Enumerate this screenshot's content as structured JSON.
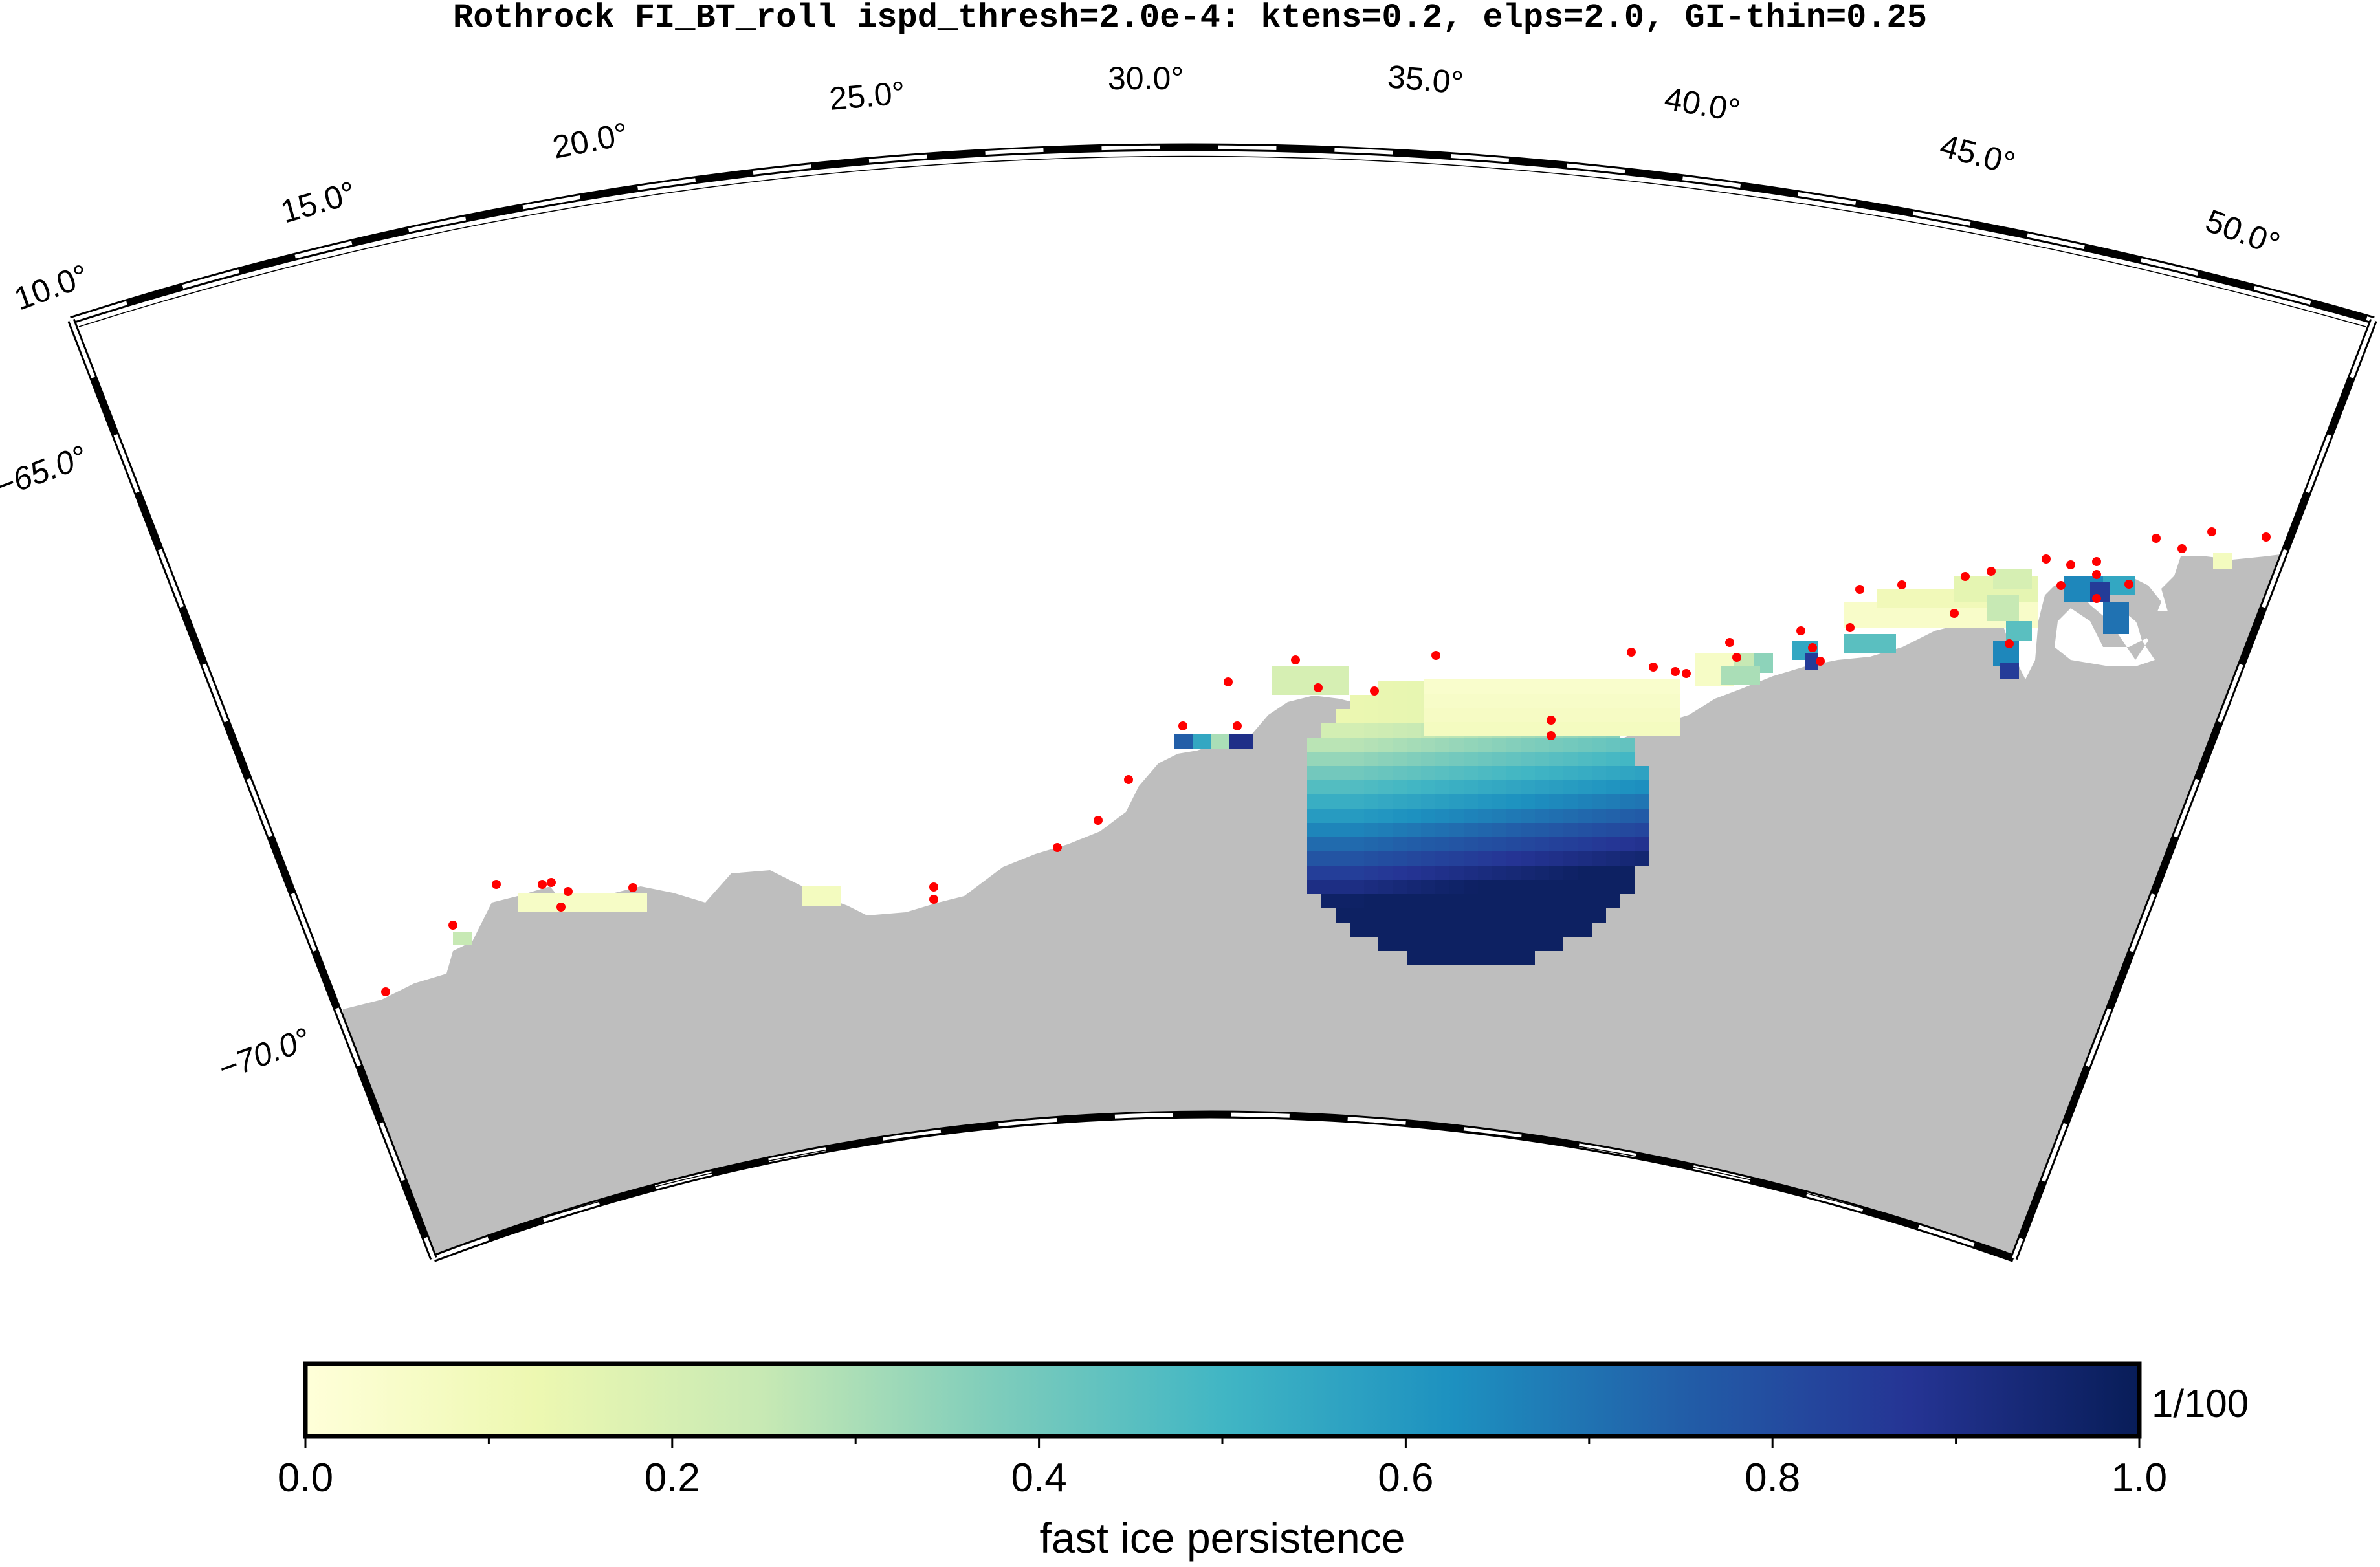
{
  "title": "Rothrock FI_BT_roll ispd_thresh=2.0e-4: ktens=0.2, elps=2.0, GI-thin=0.25",
  "map": {
    "projection": "polar stereographic (south), sector view",
    "lon_range": [
      10,
      52
    ],
    "lat_range": [
      -73.5,
      -62.8
    ],
    "land_color": "#bebebe",
    "ocean_color": "#ffffff",
    "grounded_iceberg_marker_color": "#ff0000",
    "longitude_labels": [
      "10.0°",
      "15.0°",
      "20.0°",
      "25.0°",
      "30.0°",
      "35.0°",
      "40.0°",
      "45.0°",
      "50.0°"
    ],
    "latitude_labels": [
      "−65.0°",
      "−70.0°"
    ]
  },
  "colorbar": {
    "label": "fast ice persistence",
    "unit_label": "1/100",
    "tick_labels": [
      "0.0",
      "0.2",
      "0.4",
      "0.6",
      "0.8",
      "1.0"
    ],
    "range": [
      0,
      1
    ],
    "colormap": [
      "#ffffd9",
      "#edf8b1",
      "#c7e9b4",
      "#7fcdbb",
      "#41b6c4",
      "#1d91c0",
      "#225ea8",
      "#253494",
      "#081d58"
    ]
  }
}
